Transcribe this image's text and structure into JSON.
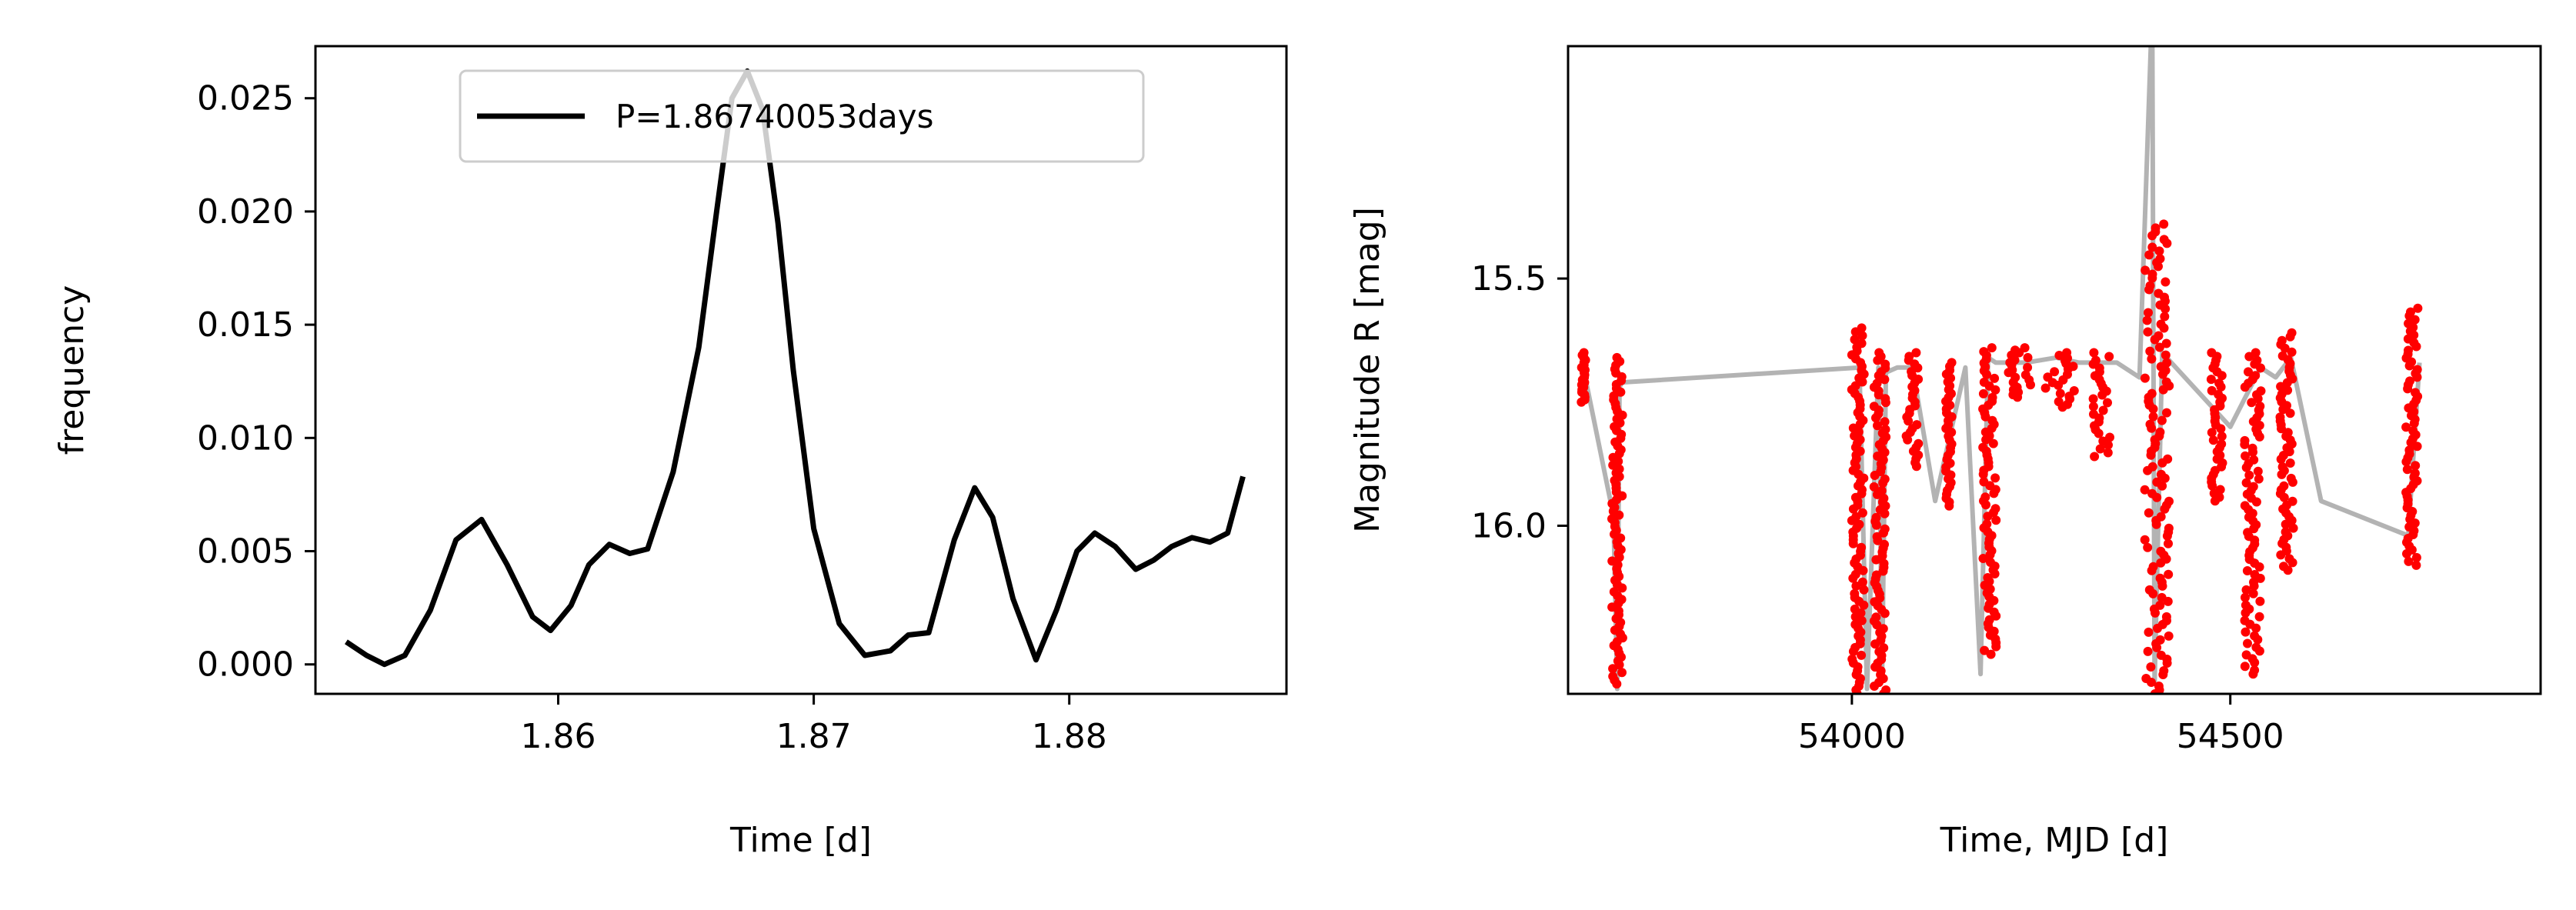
{
  "figure": {
    "background": "#ffffff"
  },
  "chart_data": [
    {
      "type": "line",
      "xlabel": "Time [d]",
      "ylabel": "frequency",
      "xlim": [
        1.8505,
        1.8885
      ],
      "ylim": [
        -0.0013,
        0.0273
      ],
      "xticks": [
        1.86,
        1.87,
        1.88
      ],
      "xtick_labels": [
        "1.86",
        "1.87",
        "1.88"
      ],
      "yticks": [
        0.0,
        0.005,
        0.01,
        0.015,
        0.02,
        0.025
      ],
      "ytick_labels": [
        "0.000",
        "0.005",
        "0.010",
        "0.015",
        "0.020",
        "0.025"
      ],
      "grid": false,
      "legend": {
        "placement": "upper center",
        "entries": [
          "P=1.86740053days"
        ]
      },
      "series": [
        {
          "name": "P=1.86740053days",
          "color": "#000000",
          "x": [
            1.8517,
            1.8525,
            1.8532,
            1.854,
            1.855,
            1.856,
            1.857,
            1.858,
            1.859,
            1.8597,
            1.8605,
            1.8612,
            1.862,
            1.8628,
            1.8635,
            1.8645,
            1.8655,
            1.8662,
            1.8668,
            1.8674,
            1.868,
            1.8686,
            1.8692,
            1.87,
            1.871,
            1.872,
            1.873,
            1.8737,
            1.8745,
            1.8755,
            1.8763,
            1.877,
            1.8778,
            1.8787,
            1.8795,
            1.8803,
            1.881,
            1.8818,
            1.8826,
            1.8833,
            1.884,
            1.8848,
            1.8855,
            1.8862,
            1.8868
          ],
          "values": [
            0.001,
            0.0004,
            0.0,
            0.0004,
            0.0024,
            0.0055,
            0.0064,
            0.0044,
            0.0021,
            0.0015,
            0.0026,
            0.0044,
            0.0053,
            0.0049,
            0.0051,
            0.0085,
            0.014,
            0.02,
            0.025,
            0.0262,
            0.0245,
            0.0195,
            0.013,
            0.006,
            0.0018,
            0.0004,
            0.0006,
            0.0013,
            0.0014,
            0.0055,
            0.0078,
            0.0065,
            0.0029,
            0.0002,
            0.0024,
            0.005,
            0.0058,
            0.0052,
            0.0042,
            0.0046,
            0.0052,
            0.0056,
            0.0054,
            0.0058,
            0.0083
          ]
        }
      ]
    },
    {
      "type": "line",
      "xlabel": "Time, MJD [d]",
      "ylabel": "Magnitude R [mag]",
      "xlim": [
        53625,
        54910
      ],
      "ylim": [
        16.34,
        15.03
      ],
      "y_inverted": true,
      "xticks": [
        54000,
        54500
      ],
      "xtick_labels": [
        "54000",
        "54500"
      ],
      "yticks": [
        15.5,
        16.0
      ],
      "ytick_labels": [
        "15.5",
        "16.0"
      ],
      "grid": false,
      "series": [
        {
          "role": "line",
          "color": "#b3b3b3",
          "x": [
            53645,
            53685,
            53690,
            53693,
            53696,
            54010,
            54020,
            54035,
            54040,
            54045,
            54060,
            54080,
            54110,
            54150,
            54170,
            54180,
            54190,
            54230,
            54270,
            54300,
            54350,
            54380,
            54395,
            54397,
            54400,
            54410,
            54500,
            54540,
            54560,
            54580,
            54620,
            54735,
            54750
          ],
          "values": [
            15.68,
            15.98,
            16.33,
            15.72,
            15.71,
            15.68,
            16.33,
            15.68,
            16.3,
            15.69,
            15.68,
            15.68,
            15.95,
            15.68,
            16.3,
            15.66,
            15.67,
            15.67,
            15.66,
            15.67,
            15.67,
            15.7,
            15.03,
            15.03,
            16.32,
            15.65,
            15.8,
            15.68,
            15.7,
            15.66,
            15.95,
            16.02,
            15.67
          ]
        },
        {
          "role": "points",
          "color": "#ff0000",
          "clusters": [
            {
              "x": 53645,
              "y_top": 15.65,
              "y_bottom": 15.75,
              "width": 6
            },
            {
              "x": 53690,
              "y_top": 15.66,
              "y_bottom": 16.32,
              "width": 14
            },
            {
              "x": 54008,
              "y_top": 15.6,
              "y_bottom": 16.34,
              "width": 16
            },
            {
              "x": 54037,
              "y_top": 15.65,
              "y_bottom": 16.34,
              "width": 16
            },
            {
              "x": 54080,
              "y_top": 15.65,
              "y_bottom": 15.88,
              "width": 16
            },
            {
              "x": 54128,
              "y_top": 15.67,
              "y_bottom": 15.96,
              "width": 8
            },
            {
              "x": 54182,
              "y_top": 15.64,
              "y_bottom": 16.26,
              "width": 18
            },
            {
              "x": 54222,
              "y_top": 15.64,
              "y_bottom": 15.74,
              "width": 30
            },
            {
              "x": 54275,
              "y_top": 15.65,
              "y_bottom": 15.76,
              "width": 40
            },
            {
              "x": 54330,
              "y_top": 15.65,
              "y_bottom": 15.86,
              "width": 22
            },
            {
              "x": 54403,
              "y_top": 15.39,
              "y_bottom": 16.34,
              "width": 32
            },
            {
              "x": 54482,
              "y_top": 15.65,
              "y_bottom": 15.95,
              "width": 16
            },
            {
              "x": 54530,
              "y_top": 15.65,
              "y_bottom": 16.3,
              "width": 22
            },
            {
              "x": 54575,
              "y_top": 15.61,
              "y_bottom": 16.09,
              "width": 18
            },
            {
              "x": 54740,
              "y_top": 15.56,
              "y_bottom": 16.08,
              "width": 16
            }
          ]
        }
      ]
    }
  ]
}
